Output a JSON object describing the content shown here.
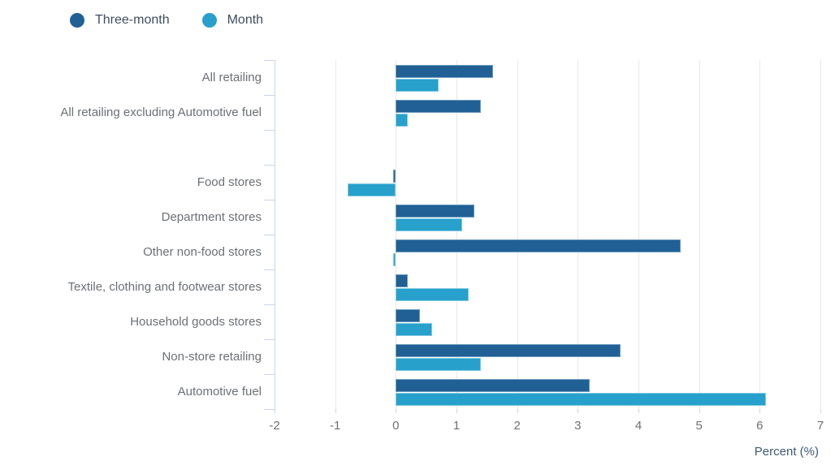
{
  "legend": {
    "items": [
      {
        "label": "Three-month",
        "color": "#206095"
      },
      {
        "label": "Month",
        "color": "#27A0CC"
      }
    ]
  },
  "chart_data": {
    "type": "bar",
    "orientation": "horizontal",
    "title": "",
    "xlabel": "Percent (%)",
    "ylabel": "",
    "xlim": [
      -2,
      7
    ],
    "x_ticks": [
      -2,
      -1,
      0,
      1,
      2,
      3,
      4,
      5,
      6,
      7
    ],
    "grid": true,
    "legend_position": "top",
    "categories": [
      "All retailing",
      "All retailing excluding Automotive fuel",
      "",
      "Food stores",
      "Department stores",
      "Other non-food stores",
      "Textile, clothing and footwear stores",
      "Household goods stores",
      "Non-store retailing",
      "Automotive fuel"
    ],
    "series": [
      {
        "name": "Three-month",
        "color": "#206095",
        "border_color": "#6f9cbe",
        "values": [
          1.6,
          1.4,
          null,
          -0.05,
          1.3,
          4.7,
          0.2,
          0.4,
          3.7,
          3.2
        ]
      },
      {
        "name": "Month",
        "color": "#27A0CC",
        "border_color": "#82cbe2",
        "values": [
          0.7,
          0.2,
          null,
          -0.8,
          1.1,
          -0.05,
          1.2,
          0.6,
          1.4,
          6.1
        ]
      }
    ]
  }
}
